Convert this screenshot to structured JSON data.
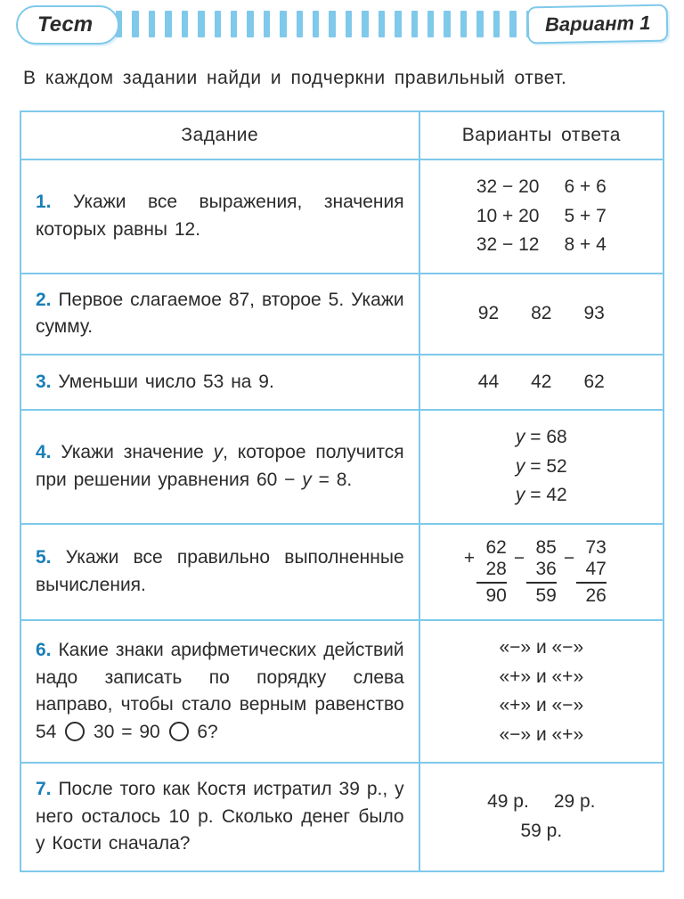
{
  "header": {
    "test_label": "Тест",
    "variant_label": "Вариант 1",
    "stripe_color": "#7fc9ea",
    "stripe_count": 26
  },
  "instruction": "В каждом задании найди и подчеркни правильный ответ.",
  "table": {
    "col_task": "Задание",
    "col_answers": "Варианты ответа",
    "border_color": "#7fc9ea",
    "number_color": "#1a7fb8"
  },
  "tasks": [
    {
      "n": "1.",
      "text": "Укажи все выражения, значения которых равны 12.",
      "answer_type": "grid2x3",
      "answers_left": [
        "32 − 20",
        "10 + 20",
        "32 − 12"
      ],
      "answers_right": [
        "6 + 6",
        "5 + 7",
        "8 + 4"
      ]
    },
    {
      "n": "2.",
      "text": "Первое слагаемое 87, второе 5. Укажи сумму.",
      "answer_type": "row3",
      "answers": [
        "92",
        "82",
        "93"
      ]
    },
    {
      "n": "3.",
      "text": "Уменьши число 53 на 9.",
      "answer_type": "row3",
      "answers": [
        "44",
        "42",
        "62"
      ]
    },
    {
      "n": "4.",
      "text_pre": "Укажи значение ",
      "y": "y",
      "text_post": ", которое получится при решении уравнения 60 − y = 8.",
      "answer_type": "eqstack",
      "answers": [
        "y = 68",
        "y = 52",
        "y = 42"
      ]
    },
    {
      "n": "5.",
      "text": "Укажи все правильно выполненные вычисления.",
      "answer_type": "column_ops",
      "ops": [
        {
          "op": "+",
          "a": "62",
          "b": "28",
          "r": "90"
        },
        {
          "op": "−",
          "a": "85",
          "b": "36",
          "r": "59"
        },
        {
          "op": "−",
          "a": "73",
          "b": "47",
          "r": "26"
        }
      ]
    },
    {
      "n": "6.",
      "text_html": "Какие знаки арифметических действий надо записать по порядку слева направо, чтобы стало верным равенство 54 ○ 30 = 90 ○ 6?",
      "text_plain_a": "Какие знаки арифметических действий надо записать по порядку слева направо, чтобы стало верным равенство 54 ",
      "text_plain_b": " 30 = 90 ",
      "text_plain_c": " 6?",
      "answer_type": "pairs",
      "answers": [
        "«−» и «−»",
        "«+» и «+»",
        "«+» и «−»",
        "«−» и «+»"
      ]
    },
    {
      "n": "7.",
      "text": "После того как Костя истратил 39 р., у него осталось 10 р. Сколько денег было у Кости сначала?",
      "answer_type": "money",
      "answers_row1": [
        "49 р.",
        "29 р."
      ],
      "answers_row2": [
        "59 р."
      ]
    }
  ]
}
